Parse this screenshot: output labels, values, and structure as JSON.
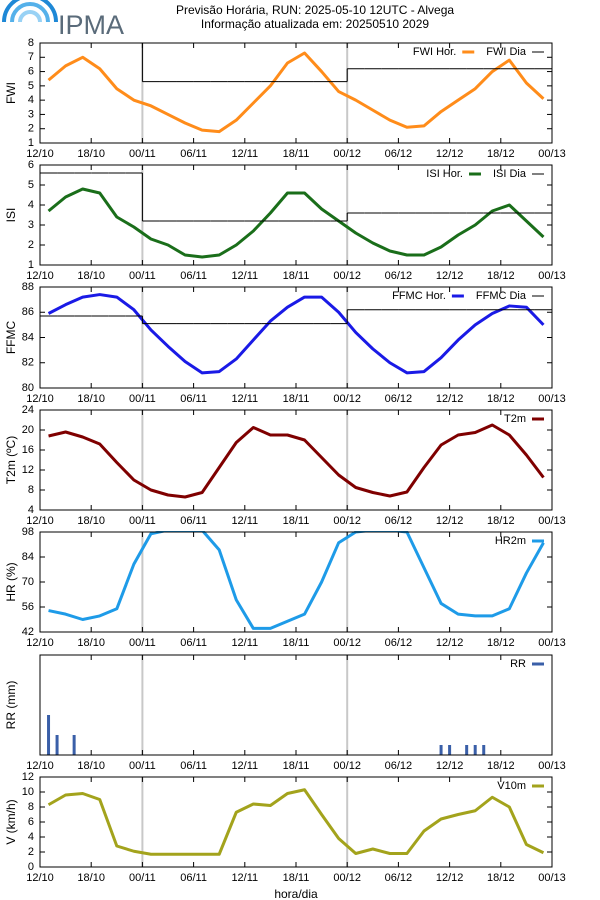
{
  "logo": "IPMA",
  "title": "Previsão Horária, RUN: 2025-05-10 12UTC - Alvega",
  "subtitle": "Informação atualizada em: 20250510 2029",
  "chart_data": [
    {
      "type": "line",
      "y_label": "FWI",
      "xlim": [
        0,
        60
      ],
      "ylim": [
        1,
        8
      ],
      "yticks": [
        1,
        2,
        3,
        4,
        5,
        6,
        7,
        8
      ],
      "vlines": [
        12,
        36
      ],
      "xticks": [
        {
          "value": 0,
          "label": "12/10"
        },
        {
          "value": 6,
          "label": "18/10"
        },
        {
          "value": 12,
          "label": "00/11"
        },
        {
          "value": 18,
          "label": "06/11"
        },
        {
          "value": 24,
          "label": "12/11"
        },
        {
          "value": 30,
          "label": "18/11"
        },
        {
          "value": 36,
          "label": "00/12"
        },
        {
          "value": 42,
          "label": "06/12"
        },
        {
          "value": 48,
          "label": "12/12"
        },
        {
          "value": 54,
          "label": "18/12"
        },
        {
          "value": 60,
          "label": "00/13"
        }
      ],
      "x": [
        1,
        3,
        5,
        7,
        9,
        11,
        13,
        15,
        17,
        19,
        21,
        23,
        25,
        27,
        29,
        31,
        33,
        35,
        37,
        39,
        41,
        43,
        45,
        47,
        49,
        51,
        53,
        55,
        57,
        59
      ],
      "series": [
        {
          "name": "FWI Hor.",
          "color": "#ff8c1a",
          "style": "line",
          "values": [
            5.4,
            6.4,
            7.0,
            6.2,
            4.8,
            4.0,
            3.6,
            3.0,
            2.4,
            1.9,
            1.8,
            2.6,
            3.8,
            5.0,
            6.6,
            7.3,
            6.0,
            4.6,
            4.0,
            3.3,
            2.6,
            2.1,
            2.2,
            3.2,
            4.0,
            4.8,
            6.0,
            6.8,
            5.2,
            4.1
          ]
        },
        {
          "name": "FWI Dia",
          "color": "#000000",
          "style": "step",
          "values": [
            8,
            8,
            8,
            8,
            8,
            8,
            5.3,
            5.3,
            5.3,
            5.3,
            5.3,
            5.3,
            5.3,
            5.3,
            5.3,
            5.3,
            5.3,
            5.3,
            6.2,
            6.2,
            6.2,
            6.2,
            6.2,
            6.2,
            6.2,
            6.2,
            6.2,
            6.2,
            6.2,
            6.2
          ]
        }
      ]
    },
    {
      "type": "line",
      "y_label": "ISI",
      "xlim": [
        0,
        60
      ],
      "ylim": [
        1,
        6
      ],
      "yticks": [
        1,
        2,
        3,
        4,
        5,
        6
      ],
      "vlines": [
        12,
        36
      ],
      "xticks": [
        {
          "value": 0,
          "label": "12/10"
        },
        {
          "value": 6,
          "label": "18/10"
        },
        {
          "value": 12,
          "label": "00/11"
        },
        {
          "value": 18,
          "label": "06/11"
        },
        {
          "value": 24,
          "label": "12/11"
        },
        {
          "value": 30,
          "label": "18/11"
        },
        {
          "value": 36,
          "label": "00/12"
        },
        {
          "value": 42,
          "label": "06/12"
        },
        {
          "value": 48,
          "label": "12/12"
        },
        {
          "value": 54,
          "label": "18/12"
        },
        {
          "value": 60,
          "label": "00/13"
        }
      ],
      "x": [
        1,
        3,
        5,
        7,
        9,
        11,
        13,
        15,
        17,
        19,
        21,
        23,
        25,
        27,
        29,
        31,
        33,
        35,
        37,
        39,
        41,
        43,
        45,
        47,
        49,
        51,
        53,
        55,
        57,
        59
      ],
      "series": [
        {
          "name": "ISI Hor.",
          "color": "#1a6e1a",
          "style": "line",
          "values": [
            3.7,
            4.4,
            4.8,
            4.6,
            3.4,
            2.9,
            2.3,
            2.0,
            1.5,
            1.4,
            1.5,
            2.0,
            2.7,
            3.6,
            4.6,
            4.6,
            3.8,
            3.2,
            2.6,
            2.1,
            1.7,
            1.5,
            1.5,
            1.9,
            2.5,
            3.0,
            3.7,
            4.0,
            3.2,
            2.4
          ]
        },
        {
          "name": "ISI Dia",
          "color": "#000000",
          "style": "step",
          "values": [
            5.6,
            5.6,
            5.6,
            5.6,
            5.6,
            5.6,
            3.2,
            3.2,
            3.2,
            3.2,
            3.2,
            3.2,
            3.2,
            3.2,
            3.2,
            3.2,
            3.2,
            3.2,
            3.6,
            3.6,
            3.6,
            3.6,
            3.6,
            3.6,
            3.6,
            3.6,
            3.6,
            3.6,
            3.6,
            3.6
          ]
        }
      ]
    },
    {
      "type": "line",
      "y_label": "FFMC",
      "xlim": [
        0,
        60
      ],
      "ylim": [
        80,
        88
      ],
      "yticks": [
        80,
        82,
        84,
        86,
        88
      ],
      "vlines": [
        12,
        36
      ],
      "xticks": [
        {
          "value": 0,
          "label": "12/10"
        },
        {
          "value": 6,
          "label": "18/10"
        },
        {
          "value": 12,
          "label": "00/11"
        },
        {
          "value": 18,
          "label": "06/11"
        },
        {
          "value": 24,
          "label": "12/11"
        },
        {
          "value": 30,
          "label": "18/11"
        },
        {
          "value": 36,
          "label": "00/12"
        },
        {
          "value": 42,
          "label": "06/12"
        },
        {
          "value": 48,
          "label": "12/12"
        },
        {
          "value": 54,
          "label": "18/12"
        },
        {
          "value": 60,
          "label": "00/13"
        }
      ],
      "x": [
        1,
        3,
        5,
        7,
        9,
        11,
        13,
        15,
        17,
        19,
        21,
        23,
        25,
        27,
        29,
        31,
        33,
        35,
        37,
        39,
        41,
        43,
        45,
        47,
        49,
        51,
        53,
        55,
        57,
        59
      ],
      "series": [
        {
          "name": "FFMC Hor.",
          "color": "#1a1ae6",
          "style": "line",
          "values": [
            85.9,
            86.6,
            87.2,
            87.4,
            87.2,
            86.2,
            84.6,
            83.3,
            82.1,
            81.2,
            81.3,
            82.3,
            83.8,
            85.3,
            86.4,
            87.2,
            87.2,
            86.0,
            84.4,
            83.1,
            82.0,
            81.2,
            81.3,
            82.4,
            83.8,
            85.0,
            85.9,
            86.5,
            86.4,
            85.0
          ]
        },
        {
          "name": "FFMC Dia",
          "color": "#000000",
          "style": "step",
          "values": [
            85.7,
            85.7,
            85.7,
            85.7,
            85.7,
            85.7,
            85.1,
            85.1,
            85.1,
            85.1,
            85.1,
            85.1,
            85.1,
            85.1,
            85.1,
            85.1,
            85.1,
            85.1,
            86.2,
            86.2,
            86.2,
            86.2,
            86.2,
            86.2,
            86.2,
            86.2,
            86.2,
            86.2,
            86.2,
            86.2
          ]
        }
      ]
    },
    {
      "type": "line",
      "y_label": "T2m (ºC)",
      "xlim": [
        0,
        60
      ],
      "ylim": [
        4,
        24
      ],
      "yticks": [
        4,
        8,
        12,
        16,
        20,
        24
      ],
      "vlines": [
        12,
        36
      ],
      "xticks": [
        {
          "value": 0,
          "label": "12/10"
        },
        {
          "value": 6,
          "label": "18/10"
        },
        {
          "value": 12,
          "label": "00/11"
        },
        {
          "value": 18,
          "label": "06/11"
        },
        {
          "value": 24,
          "label": "12/11"
        },
        {
          "value": 30,
          "label": "18/11"
        },
        {
          "value": 36,
          "label": "00/12"
        },
        {
          "value": 42,
          "label": "06/12"
        },
        {
          "value": 48,
          "label": "12/12"
        },
        {
          "value": 54,
          "label": "18/12"
        },
        {
          "value": 60,
          "label": "00/13"
        }
      ],
      "x": [
        1,
        3,
        5,
        7,
        9,
        11,
        13,
        15,
        17,
        19,
        21,
        23,
        25,
        27,
        29,
        31,
        33,
        35,
        37,
        39,
        41,
        43,
        45,
        47,
        49,
        51,
        53,
        55,
        57,
        59
      ],
      "series": [
        {
          "name": "T2m",
          "color": "#7f0000",
          "style": "line",
          "values": [
            18.8,
            19.6,
            18.6,
            17.2,
            13.5,
            10.0,
            8.0,
            7.0,
            6.6,
            7.5,
            12.5,
            17.5,
            20.5,
            19.0,
            19.0,
            18.0,
            14.5,
            11.0,
            8.5,
            7.5,
            6.8,
            7.6,
            12.5,
            17.0,
            19.0,
            19.5,
            21.0,
            19.0,
            15.0,
            10.5
          ]
        }
      ]
    },
    {
      "type": "line",
      "y_label": "HR (%)",
      "xlim": [
        0,
        60
      ],
      "ylim": [
        42,
        98
      ],
      "yticks": [
        42,
        56,
        70,
        84,
        98
      ],
      "vlines": [
        12,
        36
      ],
      "xticks": [
        {
          "value": 0,
          "label": "12/10"
        },
        {
          "value": 6,
          "label": "18/10"
        },
        {
          "value": 12,
          "label": "00/11"
        },
        {
          "value": 18,
          "label": "06/11"
        },
        {
          "value": 24,
          "label": "12/11"
        },
        {
          "value": 30,
          "label": "18/11"
        },
        {
          "value": 36,
          "label": "00/12"
        },
        {
          "value": 42,
          "label": "06/12"
        },
        {
          "value": 48,
          "label": "12/12"
        },
        {
          "value": 54,
          "label": "18/12"
        },
        {
          "value": 60,
          "label": "00/13"
        }
      ],
      "x": [
        1,
        3,
        5,
        7,
        9,
        11,
        13,
        15,
        17,
        19,
        21,
        23,
        25,
        27,
        29,
        31,
        33,
        35,
        37,
        39,
        41,
        43,
        45,
        47,
        49,
        51,
        53,
        55,
        57,
        59
      ],
      "series": [
        {
          "name": "HR2m",
          "color": "#1e9be8",
          "style": "line",
          "values": [
            54,
            52,
            49,
            51,
            55,
            80,
            97,
            99,
            99,
            99,
            88,
            60,
            44,
            44,
            48,
            52,
            70,
            92,
            98,
            99,
            99,
            98,
            78,
            58,
            52,
            51,
            51,
            55,
            75,
            92
          ]
        }
      ]
    },
    {
      "type": "bar",
      "y_label": "RR (mm)",
      "xlim": [
        0,
        60
      ],
      "ylim": [
        0,
        1
      ],
      "vlines": [
        12,
        36
      ],
      "xticks": [
        {
          "value": 0,
          "label": "12/10"
        },
        {
          "value": 6,
          "label": "18/10"
        },
        {
          "value": 12,
          "label": "00/11"
        },
        {
          "value": 18,
          "label": "06/11"
        },
        {
          "value": 24,
          "label": "12/11"
        },
        {
          "value": 30,
          "label": "18/11"
        },
        {
          "value": 36,
          "label": "00/12"
        },
        {
          "value": 42,
          "label": "06/12"
        },
        {
          "value": 48,
          "label": "12/12"
        },
        {
          "value": 54,
          "label": "18/12"
        },
        {
          "value": 60,
          "label": "00/13"
        }
      ],
      "x": [
        1,
        2,
        4,
        47,
        48,
        50,
        51,
        52
      ],
      "series": [
        {
          "name": "RR",
          "color": "#3a5fa8",
          "style": "bar",
          "values": [
            0.4,
            0.2,
            0.2,
            0.1,
            0.1,
            0.1,
            0.1,
            0.1
          ]
        }
      ]
    },
    {
      "type": "line",
      "y_label": "V (km/h)",
      "x_label": "hora/dia",
      "xlim": [
        0,
        60
      ],
      "ylim": [
        0,
        12
      ],
      "yticks": [
        0,
        2,
        4,
        6,
        8,
        10,
        12
      ],
      "vlines": [
        12,
        36
      ],
      "xticks": [
        {
          "value": 0,
          "label": "12/10"
        },
        {
          "value": 6,
          "label": "18/10"
        },
        {
          "value": 12,
          "label": "00/11"
        },
        {
          "value": 18,
          "label": "06/11"
        },
        {
          "value": 24,
          "label": "12/11"
        },
        {
          "value": 30,
          "label": "18/11"
        },
        {
          "value": 36,
          "label": "00/12"
        },
        {
          "value": 42,
          "label": "06/12"
        },
        {
          "value": 48,
          "label": "12/12"
        },
        {
          "value": 54,
          "label": "18/12"
        },
        {
          "value": 60,
          "label": "00/13"
        }
      ],
      "x": [
        1,
        3,
        5,
        7,
        9,
        11,
        13,
        15,
        17,
        19,
        21,
        23,
        25,
        27,
        29,
        31,
        33,
        35,
        37,
        39,
        41,
        43,
        45,
        47,
        49,
        51,
        53,
        55,
        57,
        59
      ],
      "series": [
        {
          "name": "V10m",
          "color": "#a3a31c",
          "style": "line",
          "values": [
            8.3,
            9.6,
            9.8,
            9.0,
            2.8,
            2.1,
            1.7,
            1.7,
            1.7,
            1.7,
            1.7,
            7.3,
            8.4,
            8.2,
            9.8,
            10.3,
            7.0,
            3.8,
            1.8,
            2.4,
            1.8,
            1.8,
            4.8,
            6.4,
            7.0,
            7.5,
            9.3,
            8.0,
            3.0,
            1.9
          ]
        }
      ]
    }
  ]
}
